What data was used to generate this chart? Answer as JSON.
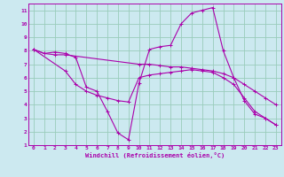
{
  "xlabel": "Windchill (Refroidissement éolien,°C)",
  "xlim": [
    -0.5,
    23.5
  ],
  "ylim": [
    1,
    11.5
  ],
  "xticks": [
    0,
    1,
    2,
    3,
    4,
    5,
    6,
    7,
    8,
    9,
    10,
    11,
    12,
    13,
    14,
    15,
    16,
    17,
    18,
    19,
    20,
    21,
    22,
    23
  ],
  "yticks": [
    1,
    2,
    3,
    4,
    5,
    6,
    7,
    8,
    9,
    10,
    11
  ],
  "bg_color": "#cce9f0",
  "line_color": "#aa00aa",
  "grid_color": "#99ccbb",
  "lines": [
    {
      "x": [
        0,
        1,
        2,
        3,
        4,
        5,
        6,
        7,
        8,
        9,
        10,
        11,
        12,
        13,
        14,
        15,
        16,
        17,
        18,
        19,
        20,
        21,
        22,
        23
      ],
      "y": [
        8.1,
        7.8,
        7.9,
        7.8,
        7.5,
        5.3,
        5.0,
        3.5,
        1.9,
        1.4,
        5.6,
        8.1,
        8.3,
        8.4,
        10.0,
        10.8,
        11.0,
        11.2,
        8.0,
        6.0,
        4.3,
        3.3,
        3.0,
        2.5
      ]
    },
    {
      "x": [
        0,
        1,
        2,
        3,
        10,
        11,
        12,
        13,
        14,
        15,
        16,
        17,
        18,
        19,
        20,
        21,
        22,
        23
      ],
      "y": [
        8.1,
        7.8,
        7.7,
        7.7,
        7.0,
        7.0,
        6.9,
        6.8,
        6.8,
        6.7,
        6.6,
        6.5,
        6.3,
        6.0,
        5.5,
        5.0,
        4.5,
        4.0
      ]
    },
    {
      "x": [
        0,
        3,
        4,
        5,
        6,
        7,
        8,
        9,
        10,
        11,
        12,
        13,
        14,
        15,
        16,
        17,
        18,
        19,
        20,
        21,
        22,
        23
      ],
      "y": [
        8.1,
        6.5,
        5.5,
        5.0,
        4.7,
        4.5,
        4.3,
        4.2,
        6.0,
        6.2,
        6.3,
        6.4,
        6.5,
        6.6,
        6.5,
        6.4,
        6.0,
        5.5,
        4.5,
        3.5,
        3.0,
        2.5
      ]
    }
  ]
}
